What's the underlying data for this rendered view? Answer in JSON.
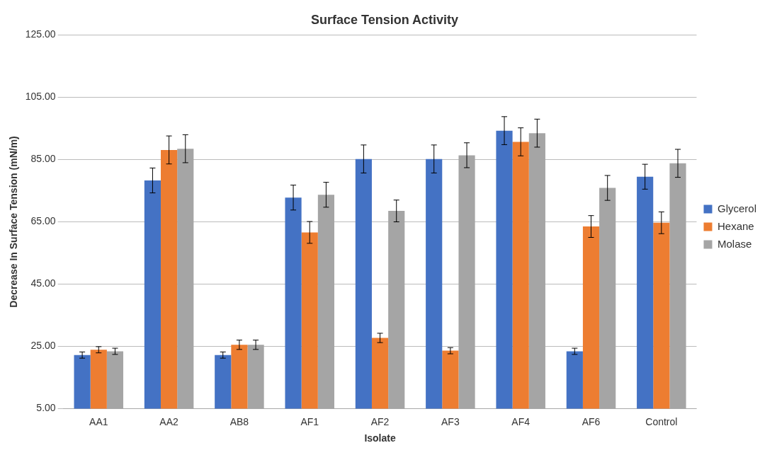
{
  "chart_data": {
    "type": "bar",
    "title": "Surface Tension Activity",
    "xlabel": "Isolate",
    "ylabel": "Decrease In Surface Tension (mN/m)",
    "categories": [
      "AA1",
      "AA2",
      "AB8",
      "AF1",
      "AF2",
      "AF3",
      "AF4",
      "AF6",
      "Control"
    ],
    "series": [
      {
        "name": "Glycerol",
        "color": "#4472c4",
        "values": [
          22.2,
          78.3,
          22.2,
          72.8,
          85.2,
          85.2,
          94.3,
          23.4,
          79.5
        ],
        "errors": [
          1,
          4,
          1,
          4,
          4.5,
          4.5,
          4.5,
          1,
          4
        ]
      },
      {
        "name": "Hexane",
        "color": "#ed7d31",
        "values": [
          23.9,
          88.1,
          25.5,
          61.6,
          27.7,
          23.6,
          90.7,
          63.5,
          64.7
        ],
        "errors": [
          1,
          4.5,
          1.5,
          3.5,
          1.5,
          1,
          4.5,
          3.5,
          3.5
        ]
      },
      {
        "name": "Molase",
        "color": "#a5a5a5",
        "values": [
          23.4,
          88.5,
          25.5,
          73.7,
          68.5,
          86.4,
          93.5,
          75.9,
          83.8
        ],
        "errors": [
          1,
          4.5,
          1.5,
          4,
          3.5,
          4,
          4.5,
          4,
          4.5
        ]
      }
    ],
    "ylim": [
      5,
      125
    ],
    "yticks": [
      {
        "value": 5,
        "label": "5.00"
      },
      {
        "value": 25,
        "label": "25.00"
      },
      {
        "value": 45,
        "label": "45.00"
      },
      {
        "value": 65,
        "label": "65.00"
      },
      {
        "value": 85,
        "label": "85.00"
      },
      {
        "value": 105,
        "label": "105.00"
      },
      {
        "value": 125,
        "label": "125.00"
      }
    ],
    "grid": "y",
    "legend": "right"
  }
}
